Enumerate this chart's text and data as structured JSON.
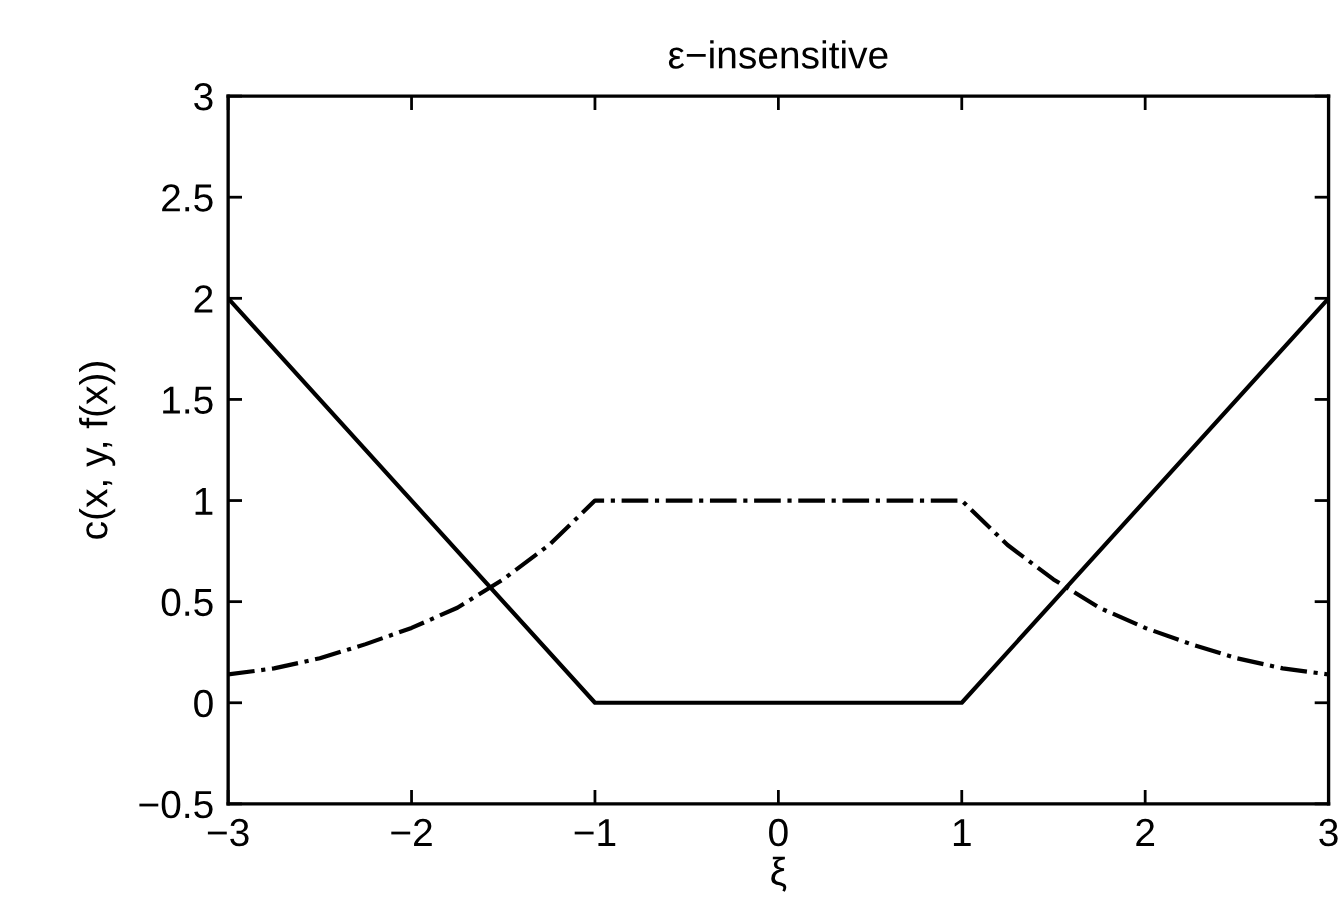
{
  "chart_data": {
    "type": "line",
    "title": "ε−insensitive",
    "xlabel": "ξ",
    "ylabel": "c(x, y, f(x))",
    "series": [
      {
        "color": "#000000",
        "line_style": "solid",
        "x": [
          -3,
          -1,
          1,
          3
        ],
        "values": [
          2,
          0,
          0,
          2
        ]
      },
      {
        "color": "#000000",
        "line_style": "dashdot",
        "x": [
          -3,
          -2.75,
          -2.5,
          -2.25,
          -2,
          -1.75,
          -1.5,
          -1.25,
          -1,
          1,
          1.25,
          1.5,
          1.75,
          2,
          2.25,
          2.5,
          2.75,
          3
        ],
        "values": [
          0.14,
          0.17,
          0.22,
          0.29,
          0.37,
          0.47,
          0.61,
          0.78,
          1,
          1,
          0.78,
          0.61,
          0.47,
          0.37,
          0.29,
          0.22,
          0.17,
          0.14
        ]
      }
    ],
    "xlim": [
      -3,
      3
    ],
    "xticks": [
      {
        "value": -3,
        "label": "−3"
      },
      {
        "value": -2,
        "label": "−2"
      },
      {
        "value": -1,
        "label": "−1"
      },
      0,
      1,
      2,
      3
    ],
    "ylim": [
      -0.5,
      3
    ],
    "yticks": [
      {
        "value": -0.5,
        "label": "−0.5"
      },
      0,
      0.5,
      1,
      1.5,
      2,
      2.5,
      3
    ],
    "grid": false
  }
}
